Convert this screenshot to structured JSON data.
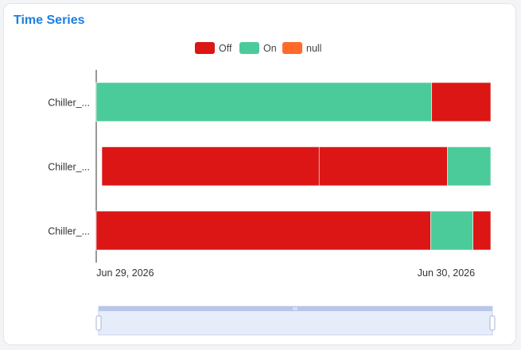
{
  "widget": {
    "title": "Time Series"
  },
  "chart_data": {
    "type": "bar",
    "orientation": "horizontal-timeline",
    "legend": [
      {
        "label": "Off",
        "color": "#dc1515"
      },
      {
        "label": "On",
        "color": "#4ccb9a"
      },
      {
        "label": "null",
        "color": "#ff6a2b"
      }
    ],
    "xlim": [
      "2026-06-28T21:50",
      "2026-06-30T03:20"
    ],
    "x_ticks": [
      {
        "label": "Jun 29, 2026",
        "t": "2026-06-29T00:00"
      },
      {
        "label": "Jun 30, 2026",
        "t": "2026-06-30T00:00"
      }
    ],
    "rows": [
      {
        "label": "Chiller_...",
        "segments": [
          {
            "state": "On",
            "start": "2026-06-28T21:50",
            "end": "2026-06-29T22:55"
          },
          {
            "state": "Off",
            "start": "2026-06-29T22:55",
            "end": "2026-06-30T03:20"
          }
        ]
      },
      {
        "label": "Chiller_...",
        "segments": [
          {
            "state": "Off",
            "start": "2026-06-28T22:15",
            "end": "2026-06-29T14:30"
          },
          {
            "state": "Off",
            "start": "2026-06-29T14:30",
            "end": "2026-06-30T00:05"
          },
          {
            "state": "On",
            "start": "2026-06-30T00:05",
            "end": "2026-06-30T03:20"
          }
        ]
      },
      {
        "label": "Chiller_...",
        "segments": [
          {
            "state": "Off",
            "start": "2026-06-28T21:50",
            "end": "2026-06-29T22:50"
          },
          {
            "state": "On",
            "start": "2026-06-29T22:50",
            "end": "2026-06-30T02:00"
          },
          {
            "state": "Off",
            "start": "2026-06-30T02:00",
            "end": "2026-06-30T03:20"
          }
        ]
      }
    ],
    "zoom_window": [
      0,
      1
    ]
  }
}
